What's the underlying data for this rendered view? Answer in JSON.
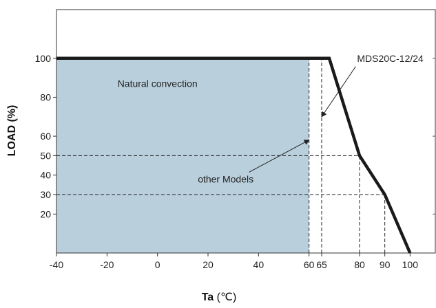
{
  "chart_data": {
    "type": "line",
    "xlabel": "Ta",
    "xlabel_unit": "(℃)",
    "ylabel": "LOAD (%)",
    "xlim": [
      -40,
      110
    ],
    "ylim": [
      0,
      125
    ],
    "x_ticks": [
      {
        "value": -40,
        "label": "-40"
      },
      {
        "value": -20,
        "label": "-20"
      },
      {
        "value": 0,
        "label": "0"
      },
      {
        "value": 20,
        "label": "20"
      },
      {
        "value": 40,
        "label": "40"
      },
      {
        "value": 60,
        "label": "60"
      },
      {
        "value": 65,
        "label": "65"
      },
      {
        "value": 80,
        "label": "80"
      },
      {
        "value": 90,
        "label": "90"
      },
      {
        "value": 100,
        "label": "100"
      }
    ],
    "y_ticks": [
      {
        "value": 100,
        "label": "100"
      },
      {
        "value": 80,
        "label": "80"
      },
      {
        "value": 60,
        "label": "60"
      },
      {
        "value": 50,
        "label": "50"
      },
      {
        "value": 40,
        "label": "40"
      },
      {
        "value": 30,
        "label": "30"
      },
      {
        "value": 20,
        "label": "20"
      }
    ],
    "series": [
      {
        "name": "MDS20C-12/24",
        "points": [
          [
            -40,
            100
          ],
          [
            68,
            100
          ],
          [
            80,
            50
          ],
          [
            90,
            30
          ],
          [
            100,
            0
          ]
        ],
        "color": "#1a1a1a"
      }
    ],
    "shaded_region": {
      "label": "Natural convection",
      "x": [
        -40,
        60
      ],
      "y": [
        0,
        100
      ],
      "color": "#b9cfdc"
    },
    "reference_lines": [
      {
        "axis": "x",
        "value": 60,
        "from": 0,
        "to": 100
      },
      {
        "axis": "x",
        "value": 65,
        "from": 0,
        "to": 100
      },
      {
        "axis": "x",
        "value": 80,
        "from": 0,
        "to": 50
      },
      {
        "axis": "x",
        "value": 90,
        "from": 0,
        "to": 30
      },
      {
        "axis": "y",
        "value": 50,
        "from": -40,
        "to": 80
      },
      {
        "axis": "y",
        "value": 30,
        "from": -40,
        "to": 90
      }
    ],
    "annotations": [
      {
        "text": "Natural convection",
        "x": 0,
        "y": 87
      },
      {
        "text": "MDS20C-12/24",
        "x": 79,
        "y": 100,
        "arrow_to": [
          65,
          70
        ]
      },
      {
        "text": "other Models",
        "x": 27,
        "y": 38,
        "arrow_to": [
          60,
          58
        ]
      }
    ],
    "grid": false
  }
}
